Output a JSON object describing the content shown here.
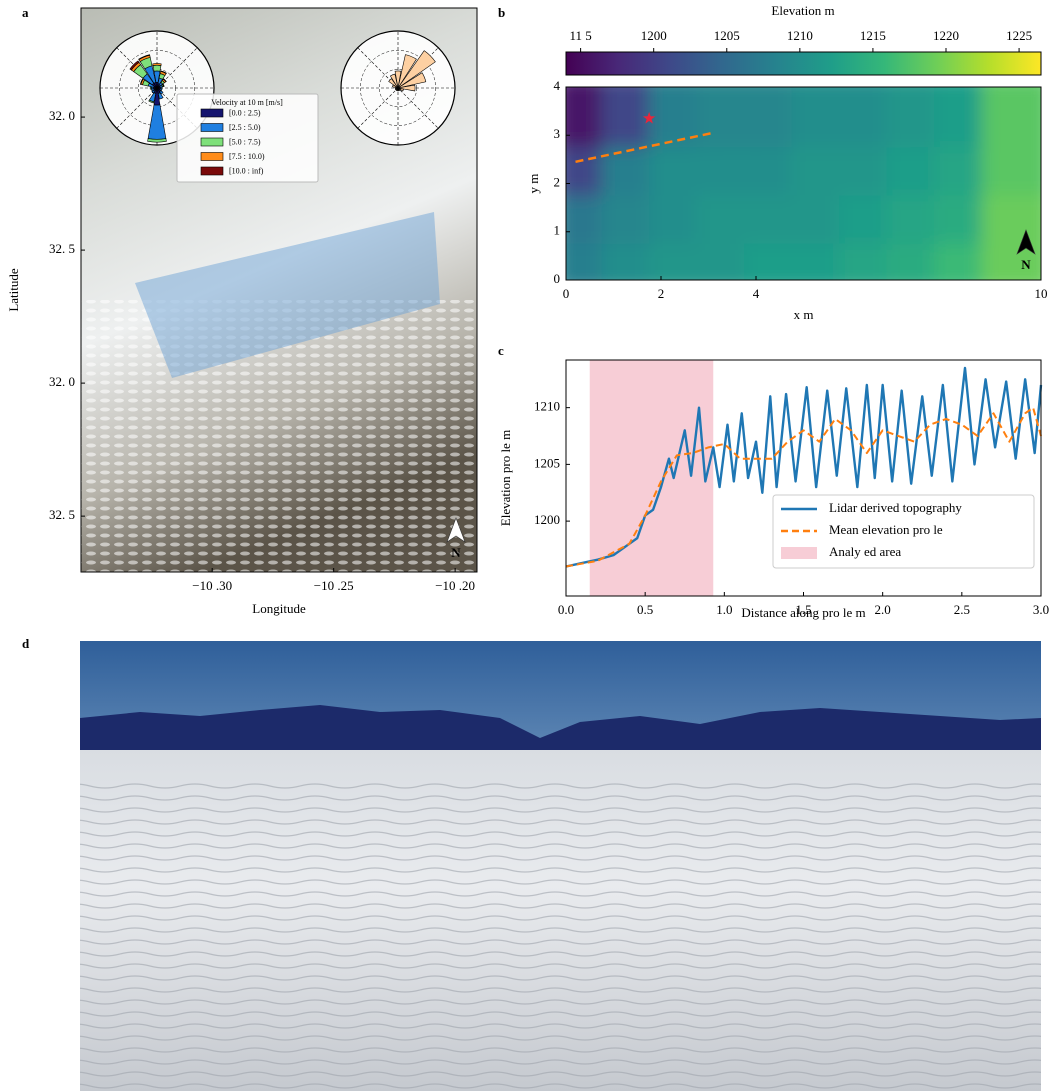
{
  "chart_data": [
    {
      "type": "windrose_map",
      "panel": "a",
      "xlabel": "Longitude",
      "ylabel": "Latitude",
      "xlim": [
        -106.354,
        -106.191
      ],
      "xticks": [
        {
          "value": -106.3,
          "label": "−10 .30"
        },
        {
          "value": -106.25,
          "label": "−10 .25"
        },
        {
          "value": -106.2,
          "label": "−10 .20"
        }
      ],
      "ylim": [
        32.729,
        32.941
      ],
      "yticks": [
        {
          "value": 32.9,
          "label": "32. 0"
        },
        {
          "value": 32.85,
          "label": "32. 5"
        },
        {
          "value": 32.8,
          "label": "32. 0"
        },
        {
          "value": 32.75,
          "label": "32. 5"
        }
      ],
      "north": "N",
      "legend_title": "Velocity at 10 m [m/s]",
      "rlim": [
        0,
        10
      ],
      "series": [
        {
          "name": "[0.0 : 2.5)",
          "color": "#14146e",
          "values": [
            1,
            0.8,
            0.6,
            0.6,
            0.6,
            0.6,
            0.8,
            1,
            3,
            1,
            0.6,
            0.6,
            0.6,
            0.6,
            1,
            1
          ]
        },
        {
          "name": "[2.5 : 5.0)",
          "color": "#1f7fe0",
          "values": [
            2,
            1,
            0.6,
            0.4,
            0.3,
            0.3,
            0.5,
            1,
            6,
            1.5,
            0.5,
            0.4,
            0.4,
            1,
            2,
            3
          ]
        },
        {
          "name": "[5.0 : 7.5)",
          "color": "#7ee07a",
          "values": [
            1,
            0.8,
            0.4,
            0.2,
            0,
            0,
            0,
            0,
            0.5,
            0.2,
            0,
            0,
            0.2,
            1,
            2,
            1.5
          ]
        },
        {
          "name": "[7.5 : 10.0)",
          "color": "#ff8c1a",
          "values": [
            0.3,
            0.4,
            0.3,
            0.1,
            0,
            0,
            0,
            0,
            0,
            0,
            0,
            0,
            0,
            0.3,
            0.5,
            0.4
          ]
        },
        {
          "name": "[10.0 : inf)",
          "color": "#7a0a0a",
          "values": [
            0,
            0.1,
            0.1,
            0,
            0,
            0,
            0,
            0,
            0,
            0,
            0,
            0,
            0,
            0.1,
            0.3,
            0.1
          ]
        }
      ],
      "rose2": {
        "color": "#fdd0a2",
        "values": [
          3,
          6,
          8,
          5,
          3,
          1,
          0.5,
          0.5,
          0.5,
          0.5,
          0.5,
          0.5,
          0.5,
          1,
          2,
          2.5
        ]
      }
    },
    {
      "type": "heatmap",
      "panel": "b",
      "xlabel": "x m",
      "ylabel": "y m",
      "colorbar_title": "Elevation m",
      "xlim": [
        0,
        10
      ],
      "xticks": [
        0,
        2,
        4,
        10
      ],
      "ylim": [
        0,
        4
      ],
      "yticks": [
        0,
        1,
        2,
        3,
        4
      ],
      "clim": [
        1194,
        1226.5
      ],
      "cticks": [
        {
          "value": 1195,
          "label": "11 5"
        },
        1200,
        1205,
        1210,
        1215,
        1220,
        1225
      ],
      "z": [
        [
          1208,
          1210,
          1211,
          1211,
          1212,
          1212,
          1213,
          1214,
          1216,
          1219
        ],
        [
          1207,
          1209,
          1210,
          1211,
          1211,
          1211,
          1212,
          1213,
          1214,
          1219
        ],
        [
          1201,
          1208,
          1210,
          1210,
          1210,
          1211,
          1211,
          1212,
          1213,
          1218
        ],
        [
          1196,
          1201,
          1208,
          1209,
          1209,
          1210,
          1210,
          1211,
          1212,
          1218
        ]
      ],
      "profile": {
        "color": "#ff7f0e",
        "x": [
          0.2,
          3.1
        ],
        "y": [
          2.45,
          3.05
        ]
      },
      "star": {
        "color": "#e8263c",
        "x": 1.75,
        "y": 3.35
      },
      "north": "N"
    },
    {
      "type": "line",
      "panel": "c",
      "xlabel": "Distance along pro le m",
      "ylabel": "Elevation pro le m",
      "xlim": [
        0,
        3.0
      ],
      "xticks": [
        {
          "value": 0,
          "label": "0.0"
        },
        0.5,
        {
          "value": 1,
          "label": "1.0"
        },
        1.5,
        {
          "value": 2,
          "label": "2.0"
        },
        2.5,
        {
          "value": 3,
          "label": "3.0"
        }
      ],
      "ylim": [
        1193.4,
        1214.2
      ],
      "yticks": [
        1200,
        1205,
        1210
      ],
      "series": [
        {
          "name": "Lidar derived topography",
          "color": "#1f77b4",
          "dash": false,
          "x": [
            0.0,
            0.1,
            0.2,
            0.3,
            0.4,
            0.45,
            0.5,
            0.55,
            0.6,
            0.65,
            0.68,
            0.75,
            0.79,
            0.84,
            0.88,
            0.93,
            0.97,
            1.02,
            1.06,
            1.11,
            1.15,
            1.2,
            1.24,
            1.29,
            1.33,
            1.39,
            1.45,
            1.52,
            1.58,
            1.65,
            1.71,
            1.77,
            1.84,
            1.9,
            1.95,
            2.0,
            2.06,
            2.12,
            2.18,
            2.25,
            2.31,
            2.38,
            2.44,
            2.52,
            2.58,
            2.65,
            2.71,
            2.78,
            2.84,
            2.9,
            2.96,
            3.0
          ],
          "values": [
            1196.0,
            1196.3,
            1196.6,
            1197.0,
            1198.0,
            1198.5,
            1200.5,
            1201.0,
            1203.0,
            1205.5,
            1203.8,
            1208.0,
            1204.0,
            1210.0,
            1203.5,
            1206.5,
            1203.0,
            1208.5,
            1203.5,
            1209.5,
            1203.8,
            1207.0,
            1202.5,
            1211.0,
            1203.0,
            1211.2,
            1203.5,
            1211.8,
            1203.0,
            1211.5,
            1204.0,
            1211.7,
            1203.0,
            1212.0,
            1203.8,
            1212.0,
            1203.5,
            1211.5,
            1203.3,
            1211.0,
            1204.0,
            1212.0,
            1203.5,
            1213.5,
            1205.0,
            1212.5,
            1206.5,
            1212.3,
            1205.5,
            1212.5,
            1206.0,
            1212.0
          ]
        },
        {
          "name": "Mean elevation pro le",
          "color": "#ff7f0e",
          "dash": true,
          "x": [
            0.0,
            0.2,
            0.4,
            0.5,
            0.6,
            0.7,
            0.8,
            0.9,
            1.0,
            1.1,
            1.2,
            1.3,
            1.4,
            1.5,
            1.6,
            1.7,
            1.8,
            1.9,
            2.0,
            2.1,
            2.2,
            2.3,
            2.4,
            2.5,
            2.6,
            2.7,
            2.8,
            2.9,
            2.95,
            3.0
          ],
          "values": [
            1196.0,
            1196.5,
            1198.0,
            1200.5,
            1203.5,
            1205.8,
            1206.0,
            1206.5,
            1206.8,
            1205.5,
            1205.5,
            1205.5,
            1207.0,
            1208.0,
            1207.0,
            1209.0,
            1208.0,
            1206.0,
            1208.0,
            1207.5,
            1207.0,
            1208.5,
            1209.0,
            1208.5,
            1207.5,
            1209.5,
            1207.0,
            1209.5,
            1210.0,
            1207.5
          ]
        }
      ],
      "shaded": {
        "name": "Analy ed area",
        "color": "#f7cdd6",
        "span": [
          0.15,
          0.93
        ]
      }
    },
    {
      "type": "photo",
      "panel": "d"
    }
  ]
}
